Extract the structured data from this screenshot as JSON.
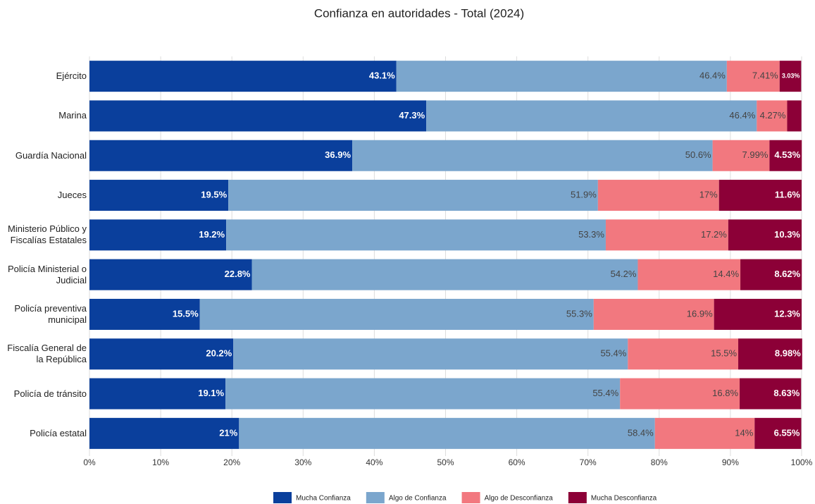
{
  "chart_data": {
    "type": "stacked-barh",
    "title": "Confianza en autoridades - Total (2024)",
    "categories": [
      "Ejército",
      "Marina",
      "Guardía Nacional",
      "Jueces",
      "Ministerio Público y Fiscalías Estatales",
      "Policía Ministerial o Judicial",
      "Policía preventiva municipal",
      "Fiscalía General de la República",
      "Policía de tránsito",
      "Policía estatal"
    ],
    "series": [
      {
        "name": "Mucha Confianza",
        "color": "#0a3f9c",
        "text_color": "#ffffff",
        "values": [
          43.1,
          47.3,
          36.9,
          19.5,
          19.2,
          22.8,
          15.5,
          20.2,
          19.1,
          21
        ],
        "value_labels": [
          "43.1%",
          "47.3%",
          "36.9%",
          "19.5%",
          "19.2%",
          "22.8%",
          "15.5%",
          "20.2%",
          "19.1%",
          "21%"
        ]
      },
      {
        "name": "Algo de Confianza",
        "color": "#7ba6cd",
        "text_color": "#444444",
        "values": [
          46.4,
          46.4,
          50.6,
          51.9,
          53.3,
          54.2,
          55.3,
          55.4,
          55.4,
          58.4
        ],
        "value_labels": [
          "46.4%",
          "46.4%",
          "50.6%",
          "51.9%",
          "53.3%",
          "54.2%",
          "55.3%",
          "55.4%",
          "55.4%",
          "58.4%"
        ]
      },
      {
        "name": "Algo de Desconfianza",
        "color": "#f2787f",
        "text_color": "#444444",
        "values": [
          7.41,
          4.27,
          7.99,
          17,
          17.2,
          14.4,
          16.9,
          15.5,
          16.8,
          14
        ],
        "value_labels": [
          "7.41%",
          "4.27%",
          "7.99%",
          "17%",
          "17.2%",
          "14.4%",
          "16.9%",
          "15.5%",
          "16.8%",
          "14%"
        ]
      },
      {
        "name": "Mucha Desconfianza",
        "color": "#8c0037",
        "text_color": "#ffffff",
        "values": [
          3.03,
          2,
          4.53,
          11.6,
          10.3,
          8.62,
          12.3,
          8.98,
          8.63,
          6.55
        ],
        "value_labels": [
          "3.03%",
          null,
          "4.53%",
          "11.6%",
          "10.3%",
          "8.62%",
          "12.3%",
          "8.98%",
          "8.63%",
          "6.55%"
        ]
      }
    ],
    "xlim": [
      0,
      100
    ],
    "xticks": [
      {
        "value": 0,
        "label": "0%"
      },
      {
        "value": 10,
        "label": "10%"
      },
      {
        "value": 20,
        "label": "20%"
      },
      {
        "value": 30,
        "label": "30%"
      },
      {
        "value": 40,
        "label": "40%"
      },
      {
        "value": 50,
        "label": "50%"
      },
      {
        "value": 60,
        "label": "60%"
      },
      {
        "value": 70,
        "label": "70%"
      },
      {
        "value": 80,
        "label": "80%"
      },
      {
        "value": 90,
        "label": "90%"
      },
      {
        "value": 100,
        "label": "100%"
      }
    ],
    "grid": true
  }
}
